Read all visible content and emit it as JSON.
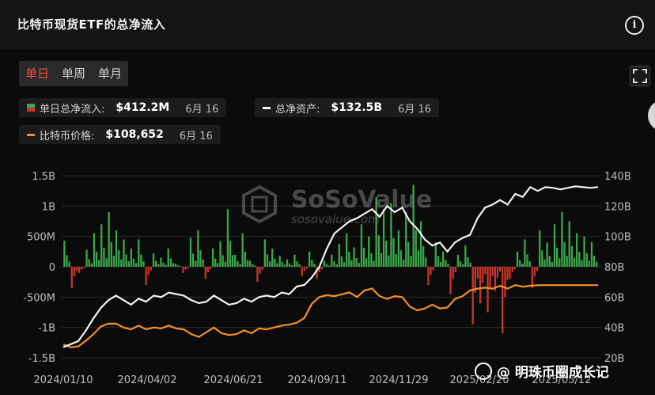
{
  "header": {
    "title": "比特币现货ETF的总净流入",
    "info_icon": "info-icon"
  },
  "tabs": [
    {
      "label": "单日",
      "active": true
    },
    {
      "label": "单周",
      "active": false
    },
    {
      "label": "单月",
      "active": false
    }
  ],
  "stats": {
    "daily_inflow": {
      "label": "单日总净流入:",
      "value": "$412.2M",
      "date": "6月 16"
    },
    "net_assets": {
      "label": "总净资产:",
      "value": "$132.5B",
      "date": "6月 16"
    },
    "btc_price": {
      "label": "比特币价格:",
      "value": "$108,652",
      "date": "6月 16"
    }
  },
  "colors": {
    "positive": "#3aa84a",
    "negative": "#c8352b",
    "assets_line": "#f2f2f2",
    "price_line": "#f0902a",
    "accent": "#ff4d33"
  },
  "watermark_logo": {
    "brand": "SoSoValue",
    "url": "sosovalue.com"
  },
  "corner_watermark": "@ 明珠币圈成长记",
  "chart_data": {
    "type": "bar+line",
    "left_axis": {
      "ticks": [
        "1.5B",
        "1B",
        "500M",
        "0",
        "-500M",
        "-1B",
        "-1.5B"
      ],
      "range": [
        -1.5,
        1.5
      ],
      "unit": "B"
    },
    "right_axis": {
      "ticks": [
        "140B",
        "120B",
        "100B",
        "80B",
        "60B",
        "40B",
        "20B"
      ],
      "range": [
        20,
        140
      ],
      "unit": "B"
    },
    "x_ticks": [
      "2024/01/10",
      "2024/04/02",
      "2024/06/21",
      "2024/09/11",
      "2024/11/29",
      "2025/02/20",
      "2025/05/12"
    ],
    "daily_flow_weekly_samples_B": [
      0.43,
      -0.35,
      -0.1,
      0.28,
      0.55,
      0.7,
      0.9,
      0.6,
      0.45,
      0.3,
      0.45,
      -0.3,
      0.22,
      0.15,
      0.3,
      0.05,
      -0.1,
      0.48,
      0.6,
      -0.2,
      0.3,
      0.42,
      0.95,
      0.2,
      0.55,
      0.1,
      -0.25,
      0.45,
      0.3,
      0.18,
      0.12,
      0.2,
      -0.15,
      0.25,
      -0.2,
      0.1,
      0.2,
      0.38,
      0.55,
      0.32,
      0.7,
      0.5,
      1.15,
      0.95,
      1.05,
      0.6,
      0.9,
      1.35,
      0.75,
      -0.3,
      0.4,
      0.25,
      -0.45,
      0.2,
      0.35,
      -0.95,
      -0.6,
      -0.75,
      -0.4,
      -1.1,
      -0.2,
      0.25,
      0.45,
      -0.35,
      0.6,
      0.4,
      0.7,
      0.9,
      0.75,
      0.55,
      0.5,
      0.41
    ],
    "net_assets_weekly_B": [
      27,
      29,
      31,
      38,
      46,
      53,
      58,
      61,
      58,
      55,
      59,
      57,
      61,
      60,
      63,
      62,
      61,
      58,
      56,
      57,
      61,
      58,
      55,
      56,
      59,
      57,
      60,
      61,
      60,
      63,
      62,
      67,
      68,
      73,
      80,
      92,
      102,
      106,
      110,
      112,
      115,
      118,
      113,
      120,
      116,
      119,
      110,
      105,
      98,
      94,
      96,
      90,
      96,
      99,
      101,
      112,
      119,
      121,
      124,
      121,
      128,
      126,
      132.5,
      130,
      132.5,
      132,
      131,
      132,
      133,
      132.5,
      132,
      132.5
    ],
    "btc_price_weekly_K": [
      46,
      43,
      44,
      50,
      57,
      65,
      68,
      68,
      64,
      62,
      66,
      62,
      64,
      63,
      66,
      63,
      62,
      57,
      54,
      59,
      64,
      58,
      56,
      57,
      61,
      58,
      63,
      62,
      64,
      66,
      67,
      69,
      74,
      89,
      96,
      98,
      97,
      99,
      101,
      96,
      103,
      105,
      97,
      94,
      97,
      96,
      86,
      82,
      84,
      88,
      84,
      85,
      94,
      97,
      103,
      105,
      106,
      105,
      108,
      105,
      108.65,
      107,
      108,
      108.5,
      108.6,
      108.65,
      108.6,
      108.65,
      108.6,
      108.65,
      108.6,
      108.652
    ]
  }
}
